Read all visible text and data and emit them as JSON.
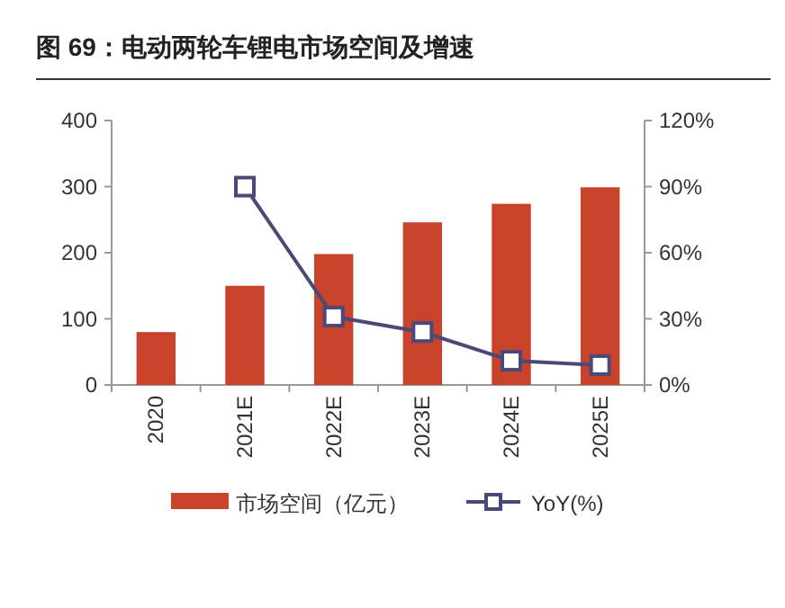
{
  "chart_data": {
    "type": "bar",
    "title": "图 69：电动两轮车锂电市场空间及增速",
    "categories": [
      "2020",
      "2021E",
      "2022E",
      "2023E",
      "2024E",
      "2025E"
    ],
    "series": [
      {
        "name": "市场空间（亿元）",
        "color": "#c8432a",
        "values": [
          80,
          150,
          198,
          246,
          274,
          299
        ]
      },
      {
        "name": "YoY(%)",
        "type": "line",
        "axis": "y2",
        "color": "#4a4a78",
        "marker": "square",
        "values": [
          null,
          90,
          31,
          24,
          11,
          9
        ]
      }
    ],
    "ylim": [
      0,
      400
    ],
    "yticks": [
      0,
      100,
      200,
      300,
      400
    ],
    "y2lim": [
      0,
      120
    ],
    "y2ticks": [
      {
        "value": 0,
        "label": "0%"
      },
      {
        "value": 30,
        "label": "30%"
      },
      {
        "value": 60,
        "label": "60%"
      },
      {
        "value": 90,
        "label": "90%"
      },
      {
        "value": 120,
        "label": "120%"
      }
    ],
    "grid": false,
    "legend": "bottom"
  }
}
